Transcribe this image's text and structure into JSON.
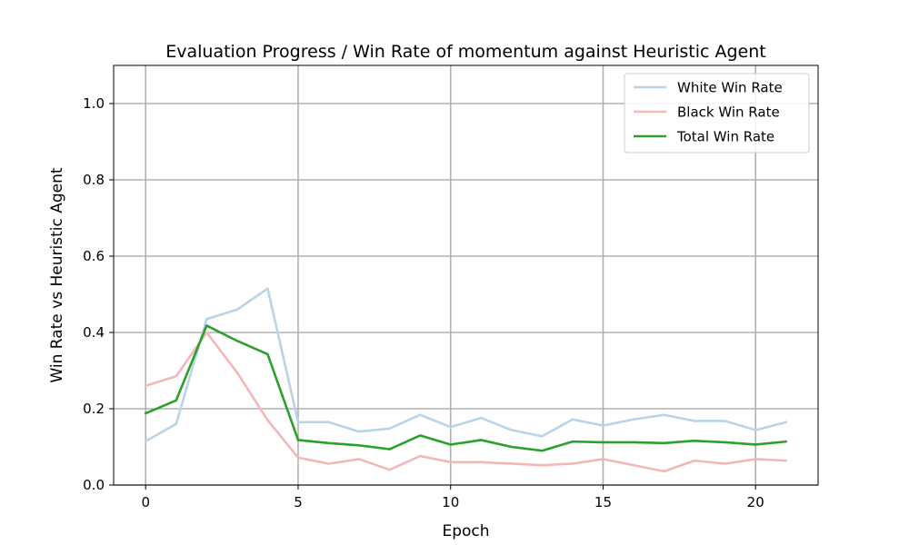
{
  "chart_data": {
    "type": "line",
    "title": "Evaluation Progress / Win Rate of momentum against Heuristic Agent",
    "xlabel": "Epoch",
    "ylabel": "Win Rate vs Heuristic Agent",
    "xlim": [
      -1.05,
      22.05
    ],
    "ylim": [
      0,
      1.1
    ],
    "xticks": [
      0,
      5,
      10,
      15,
      20
    ],
    "yticks": [
      0.0,
      0.2,
      0.4,
      0.6,
      0.8,
      1.0
    ],
    "xtick_labels": [
      "0",
      "5",
      "10",
      "15",
      "20"
    ],
    "ytick_labels": [
      "0.0",
      "0.2",
      "0.4",
      "0.6",
      "0.8",
      "1.0"
    ],
    "grid": true,
    "legend_position": "top-right",
    "x": [
      0,
      1,
      2,
      3,
      4,
      5,
      6,
      7,
      8,
      9,
      10,
      11,
      12,
      13,
      14,
      15,
      16,
      17,
      18,
      19,
      20,
      21
    ],
    "series": [
      {
        "name": "White Win Rate",
        "color": "#b8d4e8",
        "values": [
          0.115,
          0.16,
          0.435,
          0.46,
          0.515,
          0.165,
          0.165,
          0.14,
          0.148,
          0.184,
          0.152,
          0.176,
          0.144,
          0.128,
          0.172,
          0.156,
          0.172,
          0.184,
          0.168,
          0.168,
          0.144,
          0.165
        ]
      },
      {
        "name": "Black Win Rate",
        "color": "#f2b8b8",
        "values": [
          0.26,
          0.285,
          0.4,
          0.295,
          0.17,
          0.072,
          0.056,
          0.068,
          0.04,
          0.076,
          0.06,
          0.06,
          0.056,
          0.052,
          0.056,
          0.068,
          0.052,
          0.036,
          0.064,
          0.056,
          0.068,
          0.064
        ]
      },
      {
        "name": "Total Win Rate",
        "color": "#2ca02c",
        "values": [
          0.188,
          0.222,
          0.418,
          0.378,
          0.343,
          0.118,
          0.11,
          0.104,
          0.094,
          0.13,
          0.106,
          0.118,
          0.1,
          0.09,
          0.114,
          0.112,
          0.112,
          0.11,
          0.116,
          0.112,
          0.106,
          0.114
        ]
      }
    ]
  }
}
